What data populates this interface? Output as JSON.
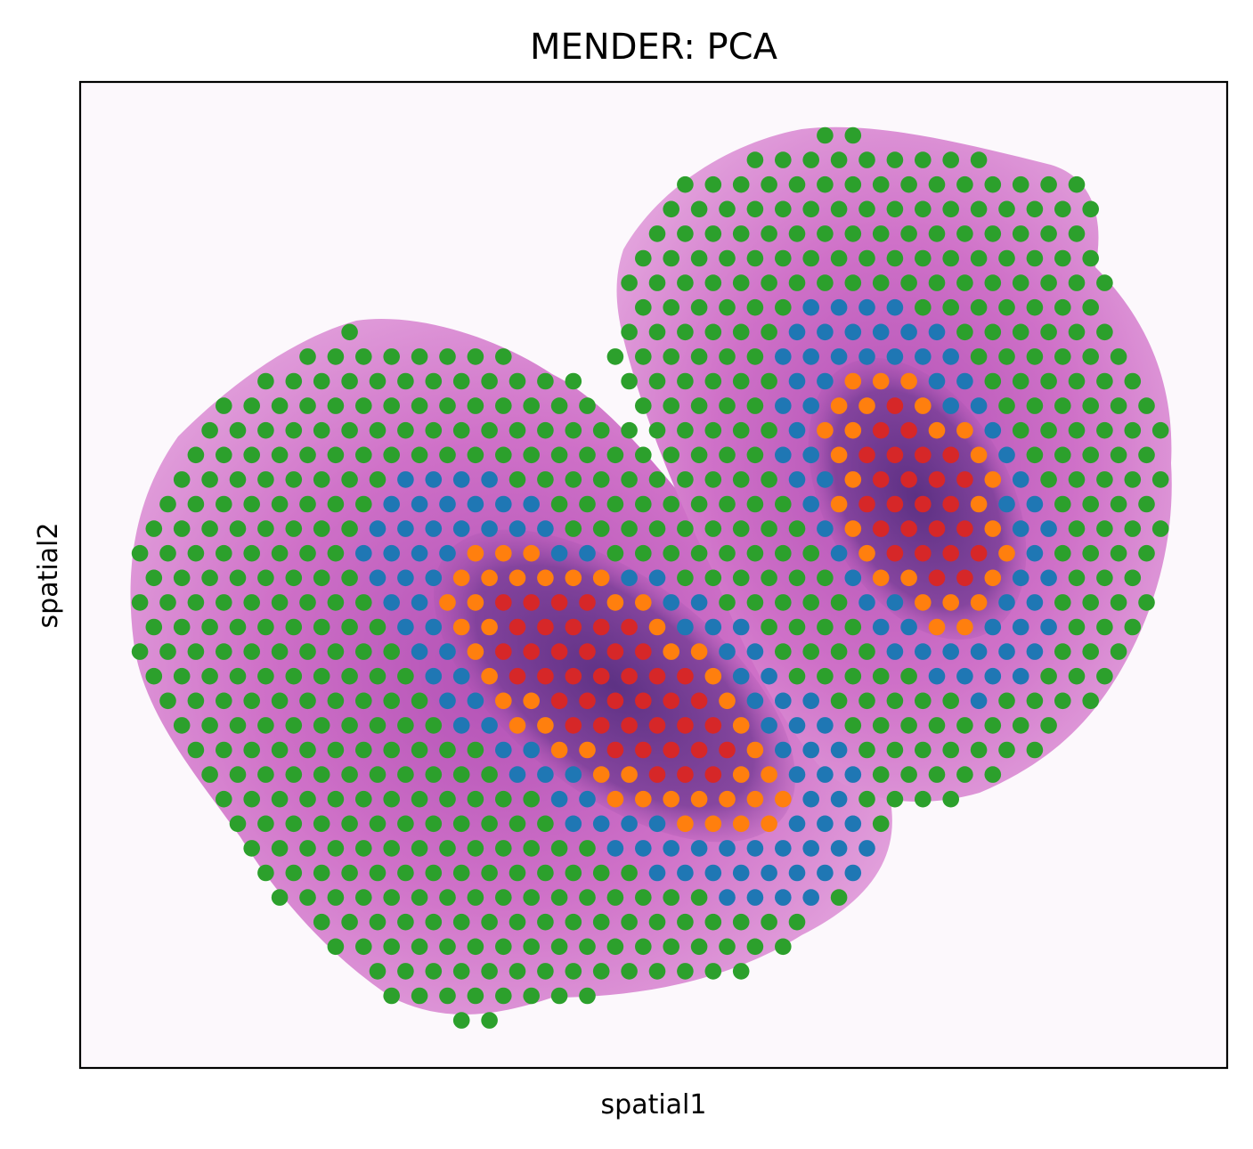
{
  "chart_data": {
    "type": "scatter",
    "title": "MENDER: PCA",
    "xlabel": "spatial1",
    "ylabel": "spatial2",
    "grid": false,
    "legend": "none",
    "ticks": "none",
    "background": "H&E tissue image (two lobes, purple/pink)",
    "series": [
      {
        "color": "#2ca02c",
        "region": "outer rim / left lobe margin and upper-right lobe top"
      },
      {
        "color": "#1f77b4",
        "region": "intermediate layer around both lobe cores"
      },
      {
        "color": "#ff7f0e",
        "region": "inner ring around cores"
      },
      {
        "color": "#d62728",
        "region": "dense cores of both lobes"
      }
    ]
  }
}
